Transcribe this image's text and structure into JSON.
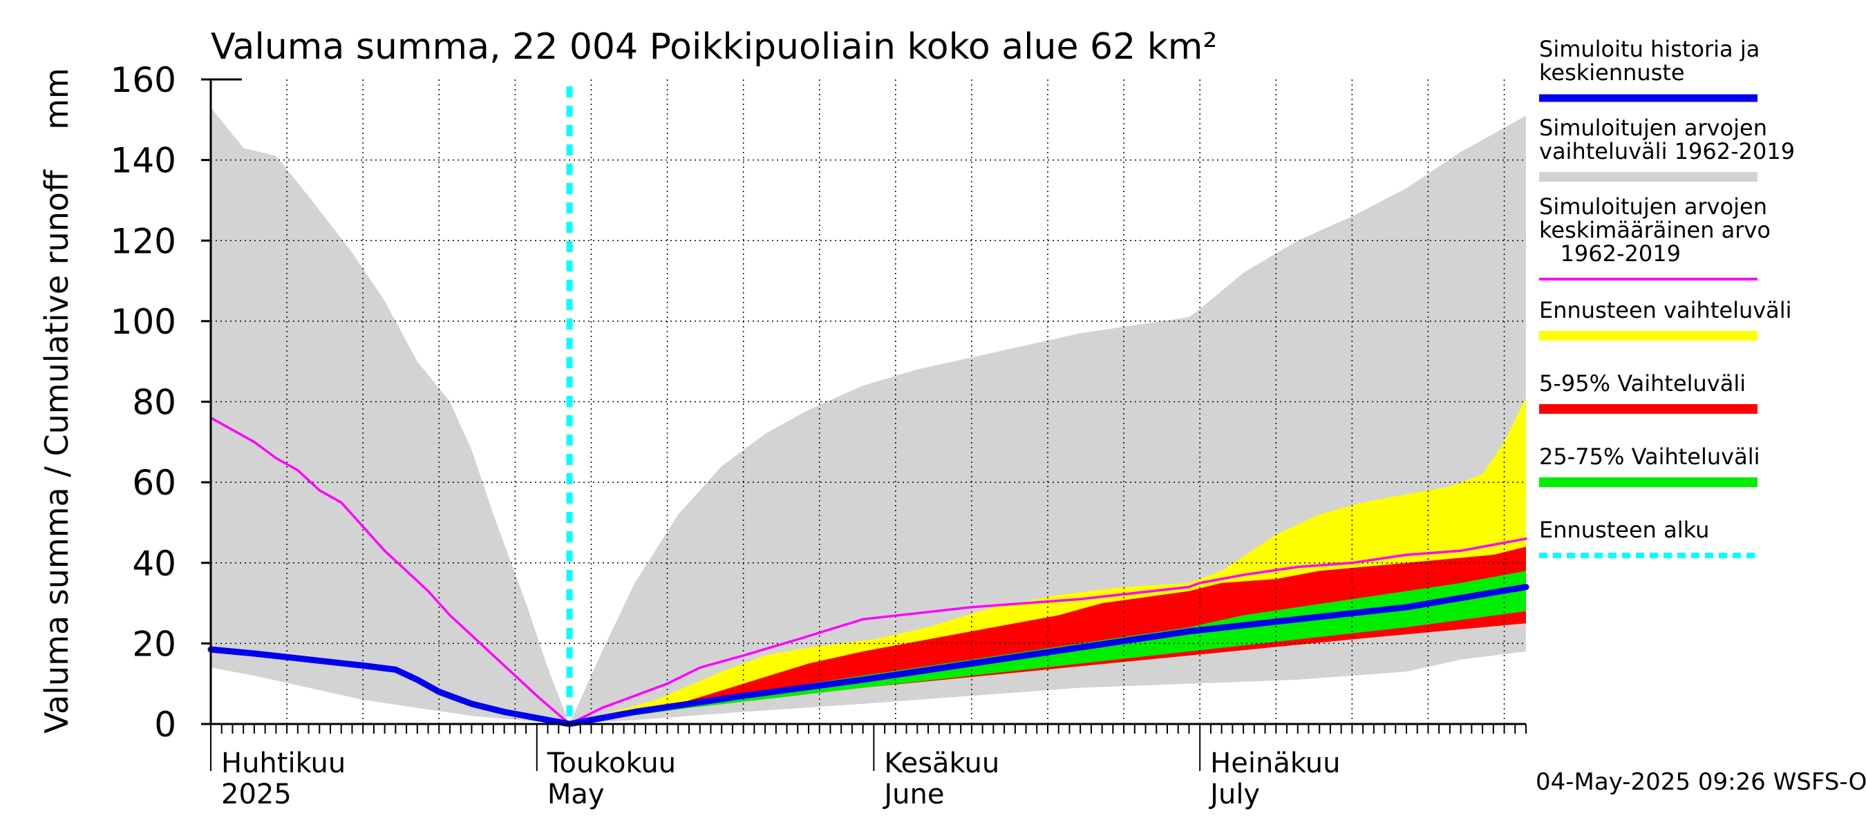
{
  "chart_data": {
    "type": "area",
    "title": "Valuma summa, 22 004 Poikkipuoliain koko alue 62 km²",
    "ylabel": "Valuma summa / Cumulative runoff    mm",
    "ylim": [
      0,
      160
    ],
    "yticks": [
      0,
      20,
      40,
      60,
      80,
      100,
      120,
      140,
      160
    ],
    "grid": true,
    "legend_position": "right",
    "x_start": "2025-04-01",
    "x_end": "2025-07-31",
    "forecast_start": "2025-05-04",
    "month_labels": [
      {
        "date": "2025-04-01",
        "line1": "Huhtikuu",
        "line2": "2025"
      },
      {
        "date": "2025-05-01",
        "line1": "Toukokuu",
        "line2": "May"
      },
      {
        "date": "2025-06-01",
        "line1": "Kesäkuu",
        "line2": "June"
      },
      {
        "date": "2025-07-01",
        "line1": "Heinäkuu",
        "line2": "July"
      }
    ],
    "timestamp": "04-May-2025 09:26 WSFS-O",
    "legend": [
      {
        "key": "sim",
        "label_lines": [
          "Simuloitu historia ja",
          "keskiennuste"
        ],
        "color": "#0000ee",
        "style": "line"
      },
      {
        "key": "range",
        "label_lines": [
          "Simuloitujen arvojen",
          "vaihteluväli 1962-2019"
        ],
        "color": "#d3d3d3",
        "style": "band"
      },
      {
        "key": "mean",
        "label_lines": [
          "Simuloitujen arvojen",
          "keskimääräinen arvo",
          "   1962-2019"
        ],
        "color": "#ff00ff",
        "style": "line"
      },
      {
        "key": "fc_range",
        "label_lines": [
          "Ennusteen vaihteluväli"
        ],
        "color": "#ffff00",
        "style": "band"
      },
      {
        "key": "p5_95",
        "label_lines": [
          "5-95% Vaihteluväli"
        ],
        "color": "#ff0000",
        "style": "band"
      },
      {
        "key": "p25_75",
        "label_lines": [
          "25-75% Vaihteluväli"
        ],
        "color": "#00ee00",
        "style": "band"
      },
      {
        "key": "fc_start",
        "label_lines": [
          "Ennusteen alku"
        ],
        "color": "#00ffff",
        "style": "dashed"
      }
    ],
    "historical_range": {
      "upper": [
        [
          "2025-04-01",
          153
        ],
        [
          "2025-04-04",
          143
        ],
        [
          "2025-04-07",
          141
        ],
        [
          "2025-04-10",
          131
        ],
        [
          "2025-04-14",
          117
        ],
        [
          "2025-04-17",
          105
        ],
        [
          "2025-04-20",
          90
        ],
        [
          "2025-04-23",
          80
        ],
        [
          "2025-04-25",
          68
        ],
        [
          "2025-04-27",
          52
        ],
        [
          "2025-04-30",
          30
        ],
        [
          "2025-05-02",
          14
        ],
        [
          "2025-05-04",
          0
        ],
        [
          "2025-05-07",
          18
        ],
        [
          "2025-05-10",
          35
        ],
        [
          "2025-05-14",
          52
        ],
        [
          "2025-05-18",
          64
        ],
        [
          "2025-05-22",
          72
        ],
        [
          "2025-05-26",
          78
        ],
        [
          "2025-05-31",
          84
        ],
        [
          "2025-06-05",
          88
        ],
        [
          "2025-06-10",
          91
        ],
        [
          "2025-06-15",
          94
        ],
        [
          "2025-06-20",
          97
        ],
        [
          "2025-06-25",
          99
        ],
        [
          "2025-06-30",
          101
        ],
        [
          "2025-07-01",
          103
        ],
        [
          "2025-07-05",
          112
        ],
        [
          "2025-07-10",
          120
        ],
        [
          "2025-07-15",
          126
        ],
        [
          "2025-07-20",
          133
        ],
        [
          "2025-07-25",
          142
        ],
        [
          "2025-07-31",
          151
        ]
      ],
      "lower": [
        [
          "2025-04-01",
          14
        ],
        [
          "2025-04-05",
          12
        ],
        [
          "2025-04-10",
          9
        ],
        [
          "2025-04-15",
          6
        ],
        [
          "2025-04-20",
          4
        ],
        [
          "2025-04-25",
          2
        ],
        [
          "2025-04-30",
          0.8
        ],
        [
          "2025-05-04",
          0
        ],
        [
          "2025-05-10",
          1
        ],
        [
          "2025-05-20",
          3
        ],
        [
          "2025-05-31",
          5
        ],
        [
          "2025-06-10",
          7
        ],
        [
          "2025-06-20",
          9
        ],
        [
          "2025-06-30",
          10
        ],
        [
          "2025-07-10",
          11
        ],
        [
          "2025-07-20",
          13
        ],
        [
          "2025-07-25",
          16
        ],
        [
          "2025-07-31",
          18
        ]
      ]
    },
    "forecast_range": {
      "upper": [
        [
          "2025-05-04",
          0
        ],
        [
          "2025-05-12",
          6
        ],
        [
          "2025-05-18",
          13
        ],
        [
          "2025-05-22",
          17
        ],
        [
          "2025-05-26",
          19
        ],
        [
          "2025-06-01",
          21
        ],
        [
          "2025-06-06",
          24
        ],
        [
          "2025-06-12",
          29
        ],
        [
          "2025-06-18",
          32
        ],
        [
          "2025-06-24",
          34
        ],
        [
          "2025-06-30",
          35
        ],
        [
          "2025-07-03",
          38
        ],
        [
          "2025-07-08",
          47
        ],
        [
          "2025-07-12",
          52
        ],
        [
          "2025-07-16",
          55
        ],
        [
          "2025-07-20",
          57
        ],
        [
          "2025-07-24",
          59
        ],
        [
          "2025-07-27",
          62
        ],
        [
          "2025-07-29",
          70
        ],
        [
          "2025-07-31",
          81
        ]
      ],
      "lower": [
        [
          "2025-05-04",
          0
        ],
        [
          "2025-05-15",
          4
        ],
        [
          "2025-05-31",
          9
        ],
        [
          "2025-06-15",
          13
        ],
        [
          "2025-06-30",
          17
        ],
        [
          "2025-07-15",
          21
        ],
        [
          "2025-07-31",
          25
        ]
      ]
    },
    "p5_95": {
      "upper": [
        [
          "2025-05-04",
          0
        ],
        [
          "2025-05-14",
          5
        ],
        [
          "2025-05-20",
          10
        ],
        [
          "2025-05-26",
          15
        ],
        [
          "2025-05-31",
          18
        ],
        [
          "2025-06-06",
          21
        ],
        [
          "2025-06-12",
          24
        ],
        [
          "2025-06-18",
          27
        ],
        [
          "2025-06-22",
          30
        ],
        [
          "2025-06-30",
          33
        ],
        [
          "2025-07-03",
          35
        ],
        [
          "2025-07-08",
          36
        ],
        [
          "2025-07-12",
          38
        ],
        [
          "2025-07-16",
          39
        ],
        [
          "2025-07-20",
          40
        ],
        [
          "2025-07-24",
          41
        ],
        [
          "2025-07-28",
          42
        ],
        [
          "2025-07-31",
          44
        ]
      ],
      "lower": [
        [
          "2025-05-04",
          0
        ],
        [
          "2025-05-15",
          4
        ],
        [
          "2025-05-31",
          9
        ],
        [
          "2025-06-15",
          13
        ],
        [
          "2025-06-30",
          17
        ],
        [
          "2025-07-15",
          21
        ],
        [
          "2025-07-31",
          25
        ]
      ]
    },
    "p25_75": {
      "upper": [
        [
          "2025-05-04",
          0
        ],
        [
          "2025-05-15",
          5
        ],
        [
          "2025-05-26",
          10
        ],
        [
          "2025-05-31",
          12
        ],
        [
          "2025-06-10",
          16
        ],
        [
          "2025-06-20",
          20
        ],
        [
          "2025-06-30",
          24
        ],
        [
          "2025-07-05",
          27
        ],
        [
          "2025-07-10",
          29
        ],
        [
          "2025-07-15",
          31
        ],
        [
          "2025-07-20",
          33
        ],
        [
          "2025-07-25",
          35
        ],
        [
          "2025-07-31",
          38
        ]
      ],
      "lower": [
        [
          "2025-05-04",
          0
        ],
        [
          "2025-05-15",
          4
        ],
        [
          "2025-05-31",
          9
        ],
        [
          "2025-06-10",
          12
        ],
        [
          "2025-06-20",
          15
        ],
        [
          "2025-06-30",
          18
        ],
        [
          "2025-07-10",
          21
        ],
        [
          "2025-07-20",
          24
        ],
        [
          "2025-07-31",
          28
        ]
      ]
    },
    "series": [
      {
        "key": "mean",
        "name": "Simuloitujen arvojen keskimääräinen arvo 1962-2019",
        "color": "#ff00ff",
        "width": 3.5,
        "points": [
          [
            "2025-04-01",
            76
          ],
          [
            "2025-04-03",
            73
          ],
          [
            "2025-04-05",
            70
          ],
          [
            "2025-04-07",
            66
          ],
          [
            "2025-04-09",
            63
          ],
          [
            "2025-04-11",
            58
          ],
          [
            "2025-04-13",
            55
          ],
          [
            "2025-04-15",
            49
          ],
          [
            "2025-04-17",
            43
          ],
          [
            "2025-04-19",
            38
          ],
          [
            "2025-04-21",
            33
          ],
          [
            "2025-04-23",
            27
          ],
          [
            "2025-04-25",
            22
          ],
          [
            "2025-04-27",
            17
          ],
          [
            "2025-04-29",
            12
          ],
          [
            "2025-05-01",
            7
          ],
          [
            "2025-05-04",
            0
          ],
          [
            "2025-05-07",
            4
          ],
          [
            "2025-05-10",
            7
          ],
          [
            "2025-05-13",
            10
          ],
          [
            "2025-05-16",
            14
          ],
          [
            "2025-05-20",
            17
          ],
          [
            "2025-05-25",
            21
          ],
          [
            "2025-05-31",
            26
          ],
          [
            "2025-06-10",
            29
          ],
          [
            "2025-06-20",
            31
          ],
          [
            "2025-06-30",
            34
          ],
          [
            "2025-07-01",
            35
          ],
          [
            "2025-07-05",
            37
          ],
          [
            "2025-07-10",
            39
          ],
          [
            "2025-07-15",
            40
          ],
          [
            "2025-07-20",
            42
          ],
          [
            "2025-07-25",
            43
          ],
          [
            "2025-07-31",
            46
          ]
        ]
      },
      {
        "key": "sim",
        "name": "Simuloitu historia ja keskiennuste",
        "color": "#0000ee",
        "width": 9,
        "points": [
          [
            "2025-04-01",
            18.5
          ],
          [
            "2025-04-05",
            17.5
          ],
          [
            "2025-04-10",
            16
          ],
          [
            "2025-04-15",
            14.5
          ],
          [
            "2025-04-18",
            13.5
          ],
          [
            "2025-04-20",
            11
          ],
          [
            "2025-04-22",
            8
          ],
          [
            "2025-04-25",
            5
          ],
          [
            "2025-04-28",
            3
          ],
          [
            "2025-05-01",
            1.5
          ],
          [
            "2025-05-04",
            0
          ],
          [
            "2025-05-10",
            3
          ],
          [
            "2025-05-20",
            7
          ],
          [
            "2025-05-31",
            11
          ],
          [
            "2025-06-10",
            15
          ],
          [
            "2025-06-20",
            19
          ],
          [
            "2025-06-30",
            23
          ],
          [
            "2025-07-10",
            26
          ],
          [
            "2025-07-20",
            29
          ],
          [
            "2025-07-31",
            34
          ]
        ]
      }
    ]
  }
}
